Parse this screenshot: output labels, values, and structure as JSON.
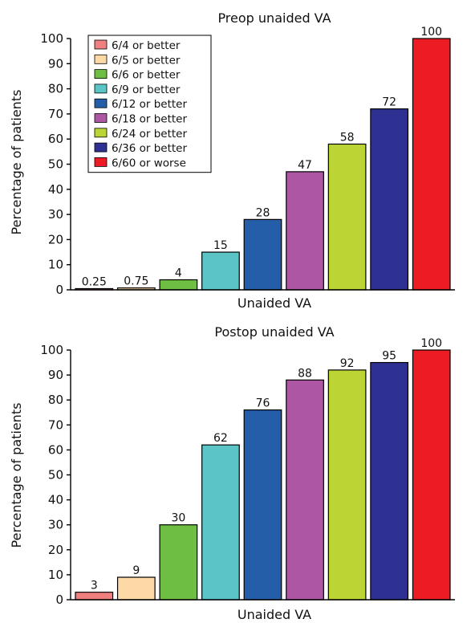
{
  "colors": {
    "6/4 or better": "#f08080",
    "6/5 or better": "#fdd9a6",
    "6/6 or better": "#6ebe44",
    "6/9 or better": "#5bc4c6",
    "6/12 or better": "#245ea8",
    "6/18 or better": "#ad56a4",
    "6/24 or better": "#bcd534",
    "6/36 or better": "#2e3192",
    "6/60 or worse": "#ed1c24"
  },
  "chart_data": [
    {
      "type": "bar",
      "title": "Preop unaided VA",
      "xlabel": "Unaided VA",
      "ylabel": "Percentage of patients",
      "ylim": [
        0,
        100
      ],
      "yticks": [
        0,
        10,
        20,
        30,
        40,
        50,
        60,
        70,
        80,
        90,
        100
      ],
      "legend": "top-left",
      "categories": [
        "6/4 or better",
        "6/5 or better",
        "6/6 or better",
        "6/9 or better",
        "6/12 or better",
        "6/18 or better",
        "6/24 or better",
        "6/36 or better",
        "6/60 or worse"
      ],
      "values": [
        0.25,
        0.75,
        4,
        15,
        28,
        47,
        58,
        72,
        100
      ],
      "labels": [
        "0.25",
        "0.75",
        "4",
        "15",
        "28",
        "47",
        "58",
        "72",
        "100"
      ]
    },
    {
      "type": "bar",
      "title": "Postop unaided VA",
      "xlabel": "Unaided VA",
      "ylabel": "Percentage of patients",
      "ylim": [
        0,
        100
      ],
      "yticks": [
        0,
        10,
        20,
        30,
        40,
        50,
        60,
        70,
        80,
        90,
        100
      ],
      "categories": [
        "6/4 or better",
        "6/5 or better",
        "6/6 or better",
        "6/9 or better",
        "6/12 or better",
        "6/18 or better",
        "6/24 or better",
        "6/36 or better",
        "6/60 or worse"
      ],
      "values": [
        3,
        9,
        30,
        62,
        76,
        88,
        92,
        95,
        100
      ],
      "labels": [
        "3",
        "9",
        "30",
        "62",
        "76",
        "88",
        "92",
        "95",
        "100"
      ]
    }
  ]
}
